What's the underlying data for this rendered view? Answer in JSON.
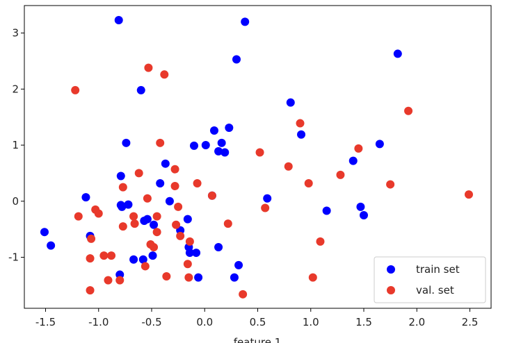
{
  "chart_data": {
    "type": "scatter",
    "x_label": "feature 1",
    "xlim": [
      -1.7,
      2.7
    ],
    "ylim": [
      -1.91,
      3.49
    ],
    "xticks": [
      -1.5,
      {
        "value": -1,
        "label": "-1.0"
      },
      -0.5,
      {
        "value": 0,
        "label": "0.0"
      },
      0.5,
      {
        "value": 1,
        "label": "1.0"
      },
      1.5,
      {
        "value": 2,
        "label": "2.0"
      },
      2.5
    ],
    "yticks": [
      -1,
      0,
      1,
      2,
      3
    ],
    "legend": "lower right",
    "series": [
      {
        "name": "train set",
        "color": "#0000ff",
        "x": [
          -0.81,
          0.38,
          1.82,
          0.3,
          -0.6,
          0.81,
          0.23,
          0.09,
          0.91,
          -0.74,
          0.16,
          0.01,
          -0.1,
          0.13,
          0.19,
          1.65,
          1.4,
          -0.37,
          -0.79,
          -0.42,
          -1.12,
          0.07,
          0.59,
          -0.33,
          -0.79,
          -0.72,
          -0.78,
          1.15,
          1.47,
          1.5,
          -0.54,
          -0.57,
          -0.16,
          -0.48,
          -1.51,
          -0.23,
          -1.08,
          -1.45,
          -0.15,
          0.13,
          -0.14,
          -0.08,
          -0.49,
          -0.67,
          -0.58,
          0.32,
          -0.8,
          -0.06,
          0.28
        ],
        "values": [
          3.23,
          3.2,
          2.63,
          2.53,
          1.98,
          1.76,
          1.31,
          1.26,
          1.19,
          1.04,
          1.04,
          1.0,
          0.99,
          0.89,
          0.87,
          1.02,
          0.72,
          0.67,
          0.45,
          0.32,
          0.07,
          0.1,
          0.05,
          0.0,
          -0.07,
          -0.06,
          -0.1,
          -0.17,
          -0.1,
          -0.25,
          -0.32,
          -0.35,
          -0.32,
          -0.42,
          -0.55,
          -0.52,
          -0.62,
          -0.79,
          -0.82,
          -0.82,
          -0.92,
          -0.92,
          -0.97,
          -1.04,
          -1.04,
          -1.14,
          -1.31,
          -1.36,
          -1.36
        ]
      },
      {
        "name": "val. set",
        "color": "#e8392b",
        "x": [
          -1.22,
          -0.53,
          -0.38,
          1.92,
          0.9,
          -0.42,
          0.52,
          1.45,
          0.79,
          -0.28,
          -0.62,
          1.28,
          0.98,
          -0.07,
          -0.28,
          -0.77,
          1.75,
          2.49,
          0.07,
          -0.54,
          0.57,
          -1.03,
          -0.25,
          -1.0,
          -1.19,
          -0.45,
          -0.67,
          -0.66,
          -0.77,
          0.22,
          -0.27,
          -0.45,
          -1.07,
          -0.23,
          -0.14,
          1.09,
          -0.51,
          -0.48,
          -0.95,
          -0.88,
          -1.08,
          -0.16,
          -0.56,
          -0.36,
          -0.15,
          -0.91,
          -0.8,
          1.02,
          -1.08,
          0.36
        ],
        "values": [
          1.98,
          2.38,
          2.26,
          1.61,
          1.39,
          1.04,
          0.87,
          0.94,
          0.62,
          0.57,
          0.5,
          0.47,
          0.32,
          0.32,
          0.27,
          0.25,
          0.3,
          0.12,
          0.1,
          0.05,
          -0.12,
          -0.15,
          -0.1,
          -0.22,
          -0.27,
          -0.27,
          -0.27,
          -0.4,
          -0.45,
          -0.4,
          -0.42,
          -0.55,
          -0.67,
          -0.62,
          -0.72,
          -0.72,
          -0.77,
          -0.82,
          -0.97,
          -0.97,
          -1.02,
          -1.12,
          -1.16,
          -1.34,
          -1.36,
          -1.41,
          -1.41,
          -1.36,
          -1.59,
          -1.66
        ]
      }
    ]
  }
}
